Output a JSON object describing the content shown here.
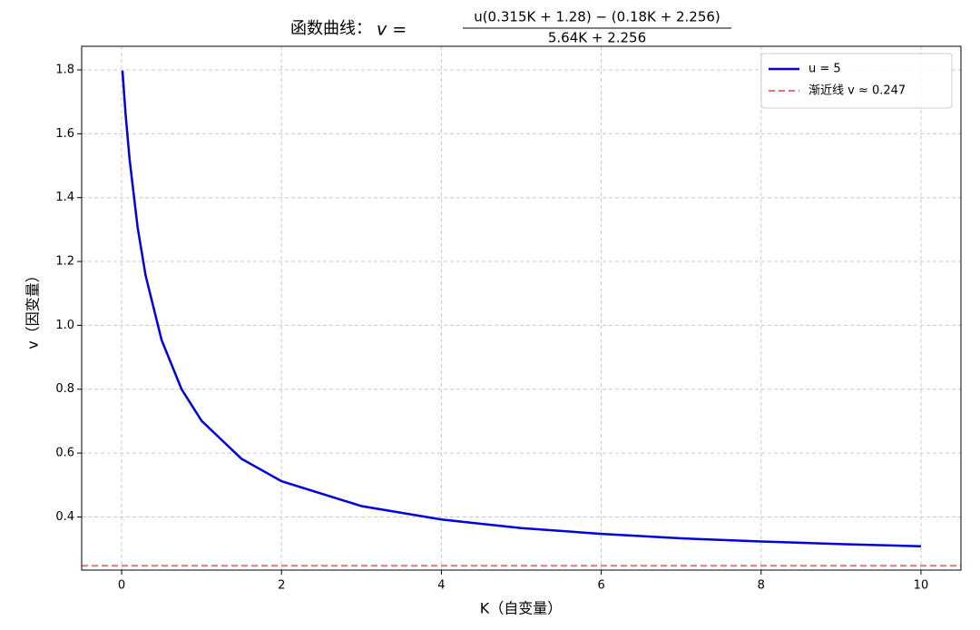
{
  "chart_data": {
    "type": "line",
    "title": "函数曲线：",
    "formula_lhs": "v =",
    "formula_numerator": "u(0.315K + 1.28) − (0.18K + 2.256)",
    "formula_denominator": "5.64K + 2.256",
    "xlabel": "K（自变量）",
    "ylabel": "v（因变量）",
    "x": [
      0.01,
      0.05,
      0.1,
      0.2,
      0.3,
      0.5,
      0.75,
      1,
      1.5,
      2,
      3,
      4,
      5,
      6,
      7,
      8,
      9,
      10
    ],
    "series": [
      {
        "name": "u = 5",
        "color": "#0000dd",
        "values": [
          1.798,
          1.66,
          1.519,
          1.307,
          1.156,
          0.954,
          0.8,
          0.701,
          0.582,
          0.512,
          0.434,
          0.392,
          0.365,
          0.347,
          0.333,
          0.323,
          0.315,
          0.308
        ]
      }
    ],
    "hlines": [
      {
        "name": "渐近线 v ≈ 0.247",
        "color": "#f07070",
        "value": 0.247
      }
    ],
    "xlim": [
      -0.5,
      10.5
    ],
    "ylim": [
      0.2335,
      1.874
    ],
    "xticks": [
      0,
      2,
      4,
      6,
      8,
      10
    ],
    "yticks": [
      0.4,
      0.6,
      0.8,
      {
        "value": 1,
        "label": "1.0"
      },
      1.2,
      1.4,
      1.6,
      1.8
    ],
    "grid": true,
    "legend": "upper right"
  }
}
